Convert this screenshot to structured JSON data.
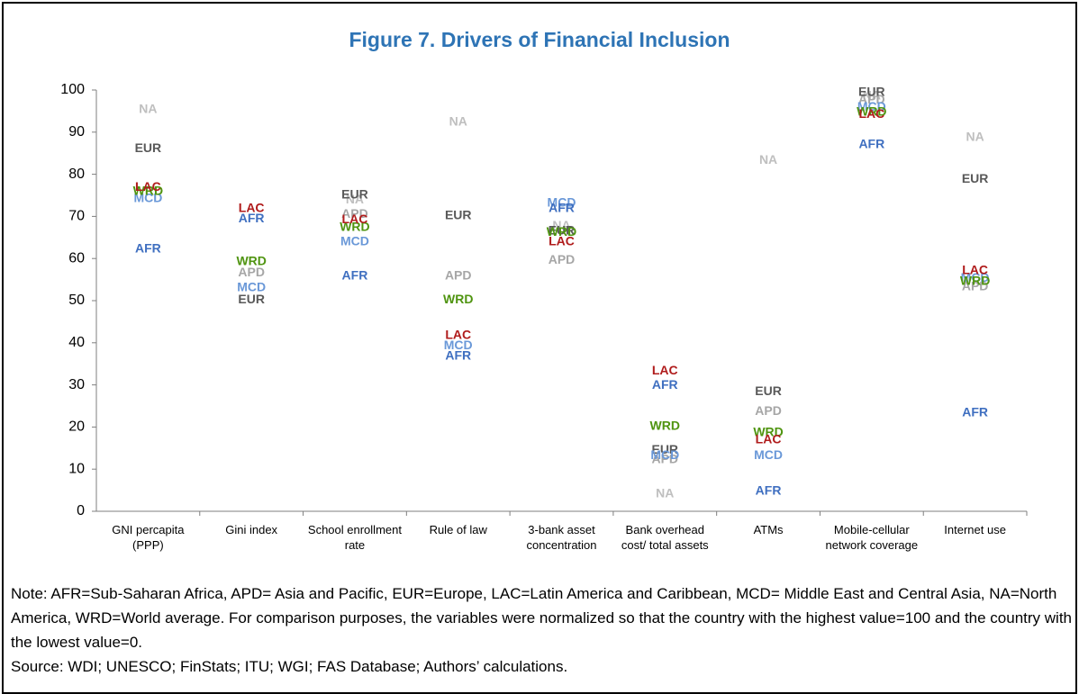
{
  "chart_data": {
    "type": "label-scatter",
    "title": "Figure 7. Drivers of Financial Inclusion",
    "categories": [
      "GNI percapita (PPP)",
      "Gini index",
      "School enrollment rate",
      "Rule of law",
      "3-bank asset concentration",
      "Bank overhead cost/ total assets",
      "ATMs",
      "Mobile-cellular network coverage",
      "Internet use"
    ],
    "series": [
      {
        "name": "NA",
        "color": "#bfbfbf",
        "values": [
          95.3,
          null,
          73.9,
          92.3,
          67.7,
          4.1,
          83.3,
          98.5,
          88.7
        ]
      },
      {
        "name": "APD",
        "color": "#a6a6a6",
        "values": [
          null,
          56.6,
          70.5,
          55.8,
          59.6,
          12.2,
          23.7,
          97.6,
          53.2
        ]
      },
      {
        "name": "EUR",
        "color": "#595959",
        "values": [
          86.1,
          50.2,
          75.0,
          70.1,
          66.5,
          14.5,
          28.4,
          99.4,
          78.8
        ]
      },
      {
        "name": "MCD",
        "color": "#6a98d8",
        "values": [
          74.2,
          53.0,
          63.9,
          39.3,
          73.1,
          13.2,
          13.2,
          95.9,
          55.3
        ]
      },
      {
        "name": "WRD",
        "color": "#4f9410",
        "values": [
          75.9,
          59.2,
          67.3,
          50.2,
          66.2,
          20.1,
          18.6,
          94.7,
          54.5
        ]
      },
      {
        "name": "LAC",
        "color": "#b01c1c",
        "values": [
          76.9,
          71.8,
          69.2,
          41.7,
          63.9,
          33.3,
          16.9,
          94.2,
          57.1
        ]
      },
      {
        "name": "AFR",
        "color": "#3f6fc0",
        "values": [
          62.2,
          69.4,
          55.8,
          36.8,
          71.8,
          29.9,
          4.7,
          87.0,
          23.3
        ]
      }
    ],
    "ylim": [
      0,
      100
    ],
    "yticks": [
      0,
      10,
      20,
      30,
      40,
      50,
      60,
      70,
      80,
      90,
      100
    ],
    "title_color": "#2e74b5",
    "note": "Note: AFR=Sub-Saharan Africa, APD= Asia and Pacific, EUR=Europe, LAC=Latin America and Caribbean, MCD= Middle East and Central Asia, NA=North America, WRD=World average. For comparison purposes, the variables were normalized so that the country with the highest value=100 and the country with the lowest value=0.",
    "source": "Source: WDI; UNESCO; FinStats; ITU; WGI; FAS Database; Authors’ calculations."
  }
}
